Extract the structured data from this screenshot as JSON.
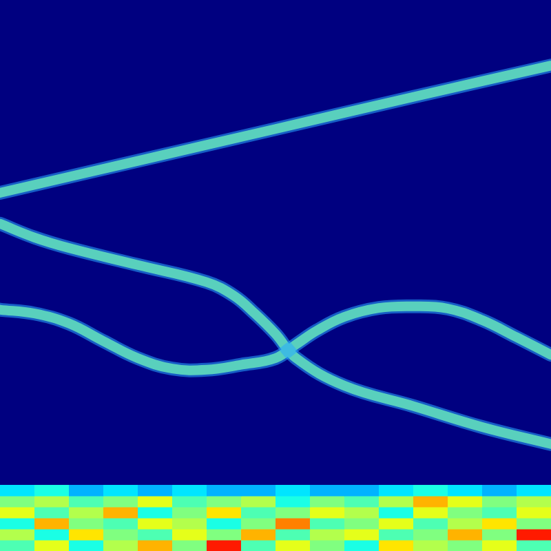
{
  "chart_data": {
    "type": "line",
    "xlim": [
      0,
      100
    ],
    "ylim": [
      0,
      100
    ],
    "tick_labels": false,
    "grid": false,
    "series": [
      {
        "color": "#e00000",
        "x": [
          0,
          25,
          50,
          75,
          100
        ],
        "values": [
          65,
          70.8,
          76.6,
          82.4,
          88.1
        ]
      },
      {
        "color": "#e00000",
        "x": [
          0,
          6.25,
          12.5,
          25,
          37.5,
          42.5,
          46.25,
          50,
          53.75,
          62.5,
          75,
          87.5,
          100
        ],
        "values": [
          59.4,
          56.9,
          55,
          51.9,
          48.8,
          46.3,
          43.1,
          39.4,
          35,
          30,
          26.3,
          22.5,
          19.4
        ]
      },
      {
        "color": "#e00000",
        "x": [
          0,
          6.25,
          12.5,
          18.75,
          25,
          31.25,
          37.5,
          43.75,
          50,
          53.75,
          57.5,
          62.5,
          68.75,
          75,
          81.25,
          87.5,
          93.75,
          100
        ],
        "values": [
          43.8,
          43.1,
          41.3,
          38.1,
          35,
          33.1,
          32.9,
          33.8,
          35,
          37.5,
          40,
          42.5,
          44.1,
          44.4,
          44,
          41.9,
          38.8,
          35.6
        ]
      }
    ],
    "noise": {
      "x_edges": [
        0,
        6.25,
        12.5,
        18.75,
        25,
        31.25,
        37.5,
        43.75,
        50,
        56.25,
        62.5,
        68.75,
        75,
        81.25,
        87.5,
        93.75,
        100
      ],
      "y_edges": [
        0,
        2,
        4,
        6,
        8,
        10,
        12
      ],
      "color_range": [
        0,
        1
      ],
      "cells": [
        [
          0.45,
          0.6,
          0.4,
          0.55,
          0.7,
          0.5,
          0.85,
          0.45,
          0.6,
          0.5,
          0.4,
          0.65,
          0.55,
          0.5,
          0.6,
          0.45
        ],
        [
          0.55,
          0.4,
          0.65,
          0.5,
          0.45,
          0.6,
          0.5,
          0.7,
          0.45,
          0.55,
          0.6,
          0.45,
          0.5,
          0.7,
          0.5,
          0.85
        ],
        [
          0.4,
          0.7,
          0.5,
          0.45,
          0.6,
          0.55,
          0.4,
          0.5,
          0.75,
          0.45,
          0.5,
          0.6,
          0.45,
          0.55,
          0.65,
          0.5
        ],
        [
          0.6,
          0.45,
          0.55,
          0.7,
          0.4,
          0.5,
          0.65,
          0.45,
          0.5,
          0.6,
          0.55,
          0.4,
          0.6,
          0.5,
          0.45,
          0.6
        ],
        [
          0.5,
          0.55,
          0.45,
          0.5,
          0.6,
          0.45,
          0.5,
          0.55,
          0.4,
          0.5,
          0.45,
          0.55,
          0.7,
          0.6,
          0.5,
          0.55
        ],
        [
          0.35,
          0.4,
          0.3,
          0.35,
          0.3,
          0.35,
          0.3,
          0.3,
          0.35,
          0.3,
          0.3,
          0.35,
          0.4,
          0.35,
          0.3,
          0.35
        ]
      ]
    }
  }
}
